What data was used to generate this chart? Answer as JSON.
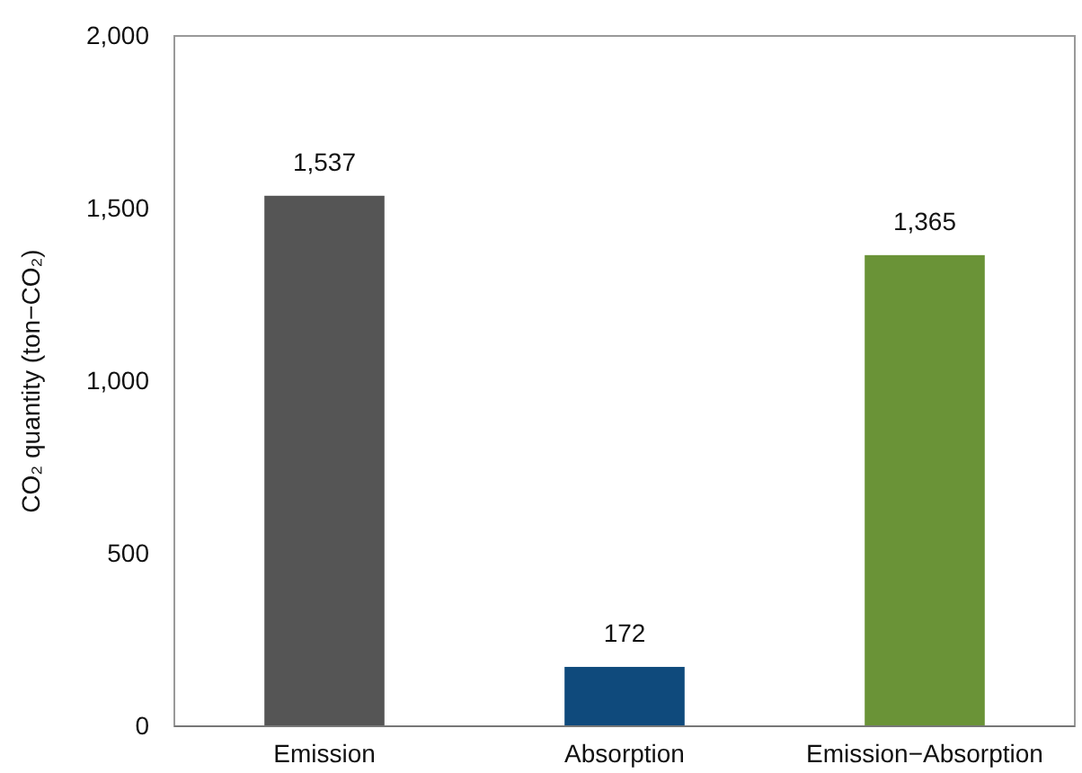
{
  "chart_data": {
    "type": "bar",
    "ylabel": "CO₂ quantity (ton−CO₂)",
    "categories": [
      "Emission",
      "Absorption",
      "Emission−Absorption"
    ],
    "values": [
      1537,
      172,
      1365
    ],
    "colors": [
      "#555555",
      "#0f4a7c",
      "#6a9337"
    ],
    "ylim": [
      0,
      2000
    ],
    "yticks": [
      {
        "value": 0,
        "label": "0"
      },
      {
        "value": 500,
        "label": "500"
      },
      {
        "value": 1000,
        "label": "1,000"
      },
      {
        "value": 1500,
        "label": "1,500"
      },
      {
        "value": 2000,
        "label": "2,000"
      }
    ],
    "value_labels": [
      "1,537",
      "172",
      "1,365"
    ],
    "grid": false
  }
}
